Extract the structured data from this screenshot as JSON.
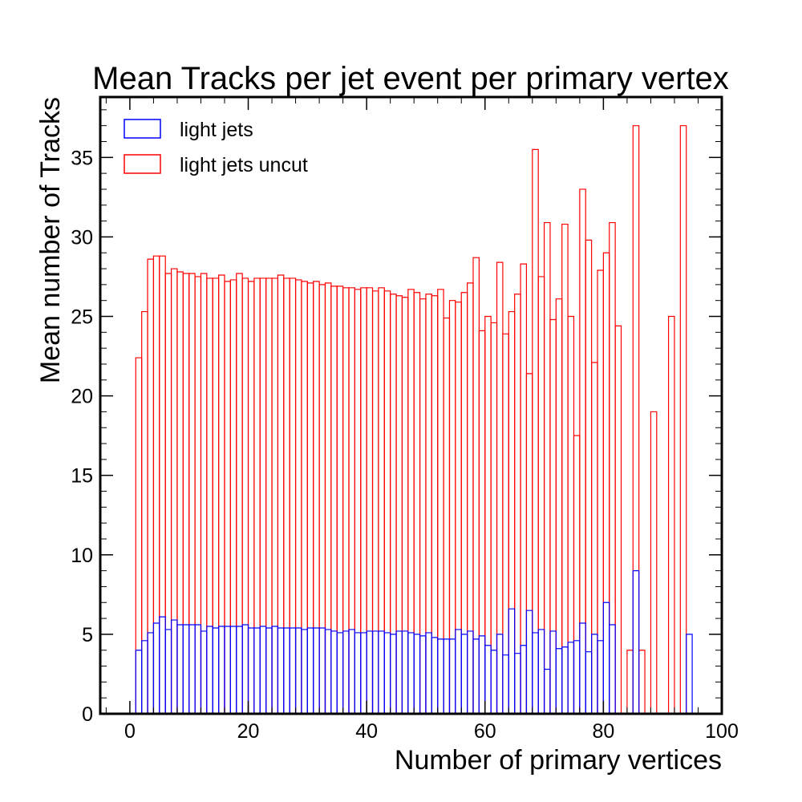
{
  "chart_data": {
    "type": "bar",
    "title": "Mean Tracks per jet event per primary vertex",
    "xlabel": "Number of primary vertices",
    "ylabel": "Mean number of Tracks",
    "xlim": [
      -5,
      100
    ],
    "ylim": [
      0,
      38.8
    ],
    "x_ticks": [
      0,
      20,
      40,
      60,
      80,
      100
    ],
    "y_ticks": [
      0,
      5,
      10,
      15,
      20,
      25,
      30,
      35
    ],
    "bin_width": 1,
    "grid": false,
    "legend_position": "top-left",
    "style": "histogram-step",
    "bin_edges_start": 0,
    "series": [
      {
        "name": "light jets",
        "color": "#0000ff",
        "values": [
          0,
          4.0,
          4.6,
          5.1,
          5.7,
          6.1,
          5.3,
          5.9,
          5.6,
          5.6,
          5.6,
          5.6,
          5.2,
          5.5,
          5.4,
          5.5,
          5.5,
          5.5,
          5.5,
          5.6,
          5.4,
          5.4,
          5.5,
          5.4,
          5.5,
          5.4,
          5.4,
          5.4,
          5.4,
          5.3,
          5.4,
          5.4,
          5.4,
          5.3,
          5.2,
          5.1,
          5.2,
          5.3,
          5.1,
          5.1,
          5.2,
          5.2,
          5.2,
          5.1,
          5.0,
          5.2,
          5.2,
          5.1,
          5.0,
          4.9,
          5.1,
          4.8,
          4.7,
          4.7,
          4.7,
          5.3,
          5.0,
          5.2,
          4.7,
          4.9,
          4.3,
          4.0,
          5.0,
          3.7,
          6.6,
          3.8,
          4.3,
          6.5,
          5.1,
          5.3,
          2.8,
          5.2,
          4.1,
          4.2,
          4.5,
          4.6,
          5.7,
          3.9,
          5.0,
          4.6,
          7.0,
          5.6,
          0,
          0,
          0,
          9.0,
          0,
          0,
          0,
          0,
          0,
          0,
          0,
          0,
          5.0
        ]
      },
      {
        "name": "light jets uncut",
        "color": "#ff0000",
        "values": [
          0,
          22.4,
          25.3,
          28.6,
          28.8,
          28.8,
          27.7,
          28.0,
          27.8,
          27.7,
          27.7,
          27.5,
          27.7,
          27.4,
          27.4,
          27.6,
          27.2,
          27.3,
          27.7,
          27.4,
          27.2,
          27.4,
          27.4,
          27.4,
          27.4,
          27.6,
          27.4,
          27.4,
          27.3,
          27.2,
          27.1,
          27.2,
          27.0,
          27.1,
          26.9,
          26.9,
          26.8,
          26.8,
          26.7,
          26.8,
          26.8,
          26.6,
          26.8,
          26.6,
          26.4,
          26.3,
          26.2,
          26.7,
          26.5,
          26.1,
          26.4,
          26.3,
          26.7,
          24.9,
          26.0,
          25.9,
          26.5,
          27.1,
          28.7,
          24.1,
          25.0,
          24.6,
          28.4,
          23.9,
          25.3,
          26.4,
          28.3,
          21.4,
          35.5,
          27.5,
          30.9,
          24.8,
          26.1,
          30.8,
          25.0,
          17.5,
          33.0,
          29.8,
          22.1,
          27.9,
          29.0,
          30.9,
          24.4,
          0,
          4.0,
          37.0,
          4.0,
          0,
          19.0,
          0,
          0,
          25.0,
          0,
          37.0
        ]
      }
    ]
  }
}
